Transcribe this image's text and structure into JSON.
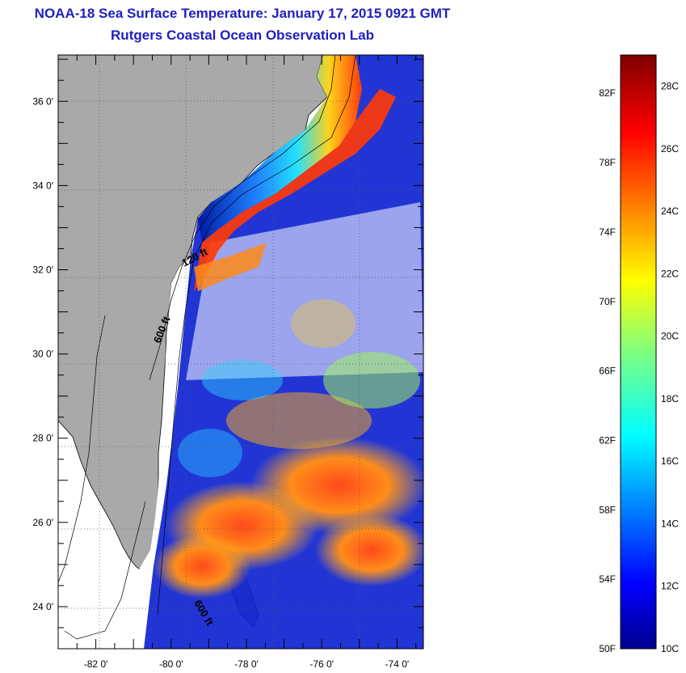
{
  "title_line1": "NOAA-18 Sea Surface Temperature:  January 17, 2015 0921 GMT",
  "title_line2": "Rutgers Coastal Ocean Observation Lab",
  "map": {
    "lat_labels": [
      {
        "label": "36 0'",
        "value": 36
      },
      {
        "label": "34 0'",
        "value": 34
      },
      {
        "label": "32 0'",
        "value": 32
      },
      {
        "label": "30 0'",
        "value": 30
      },
      {
        "label": "28 0'",
        "value": 28
      },
      {
        "label": "26 0'",
        "value": 26
      },
      {
        "label": "24 0'",
        "value": 24
      }
    ],
    "lon_labels": [
      {
        "label": "-82 0'",
        "value": -82
      },
      {
        "label": "-80 0'",
        "value": -80
      },
      {
        "label": "-78 0'",
        "value": -78
      },
      {
        "label": "-76 0'",
        "value": -76
      },
      {
        "label": "-74 0'",
        "value": -74
      }
    ],
    "lat_range": [
      23,
      37.1
    ],
    "lon_range": [
      -83,
      -73.3
    ],
    "contour_labels": [
      "120 ft",
      "600 ft",
      "600 ft"
    ],
    "land_color": "#a9a9a9",
    "nodata_color": "#ffffff"
  },
  "colorbar": {
    "fahrenheit_labels": [
      "82F",
      "78F",
      "74F",
      "70F",
      "66F",
      "62F",
      "58F",
      "54F",
      "50F"
    ],
    "celsius_labels": [
      "28C",
      "26C",
      "24C",
      "22C",
      "20C",
      "18C",
      "16C",
      "14C",
      "12C",
      "10C"
    ],
    "min_c": 10,
    "max_c": 29,
    "colormap": "jet"
  }
}
